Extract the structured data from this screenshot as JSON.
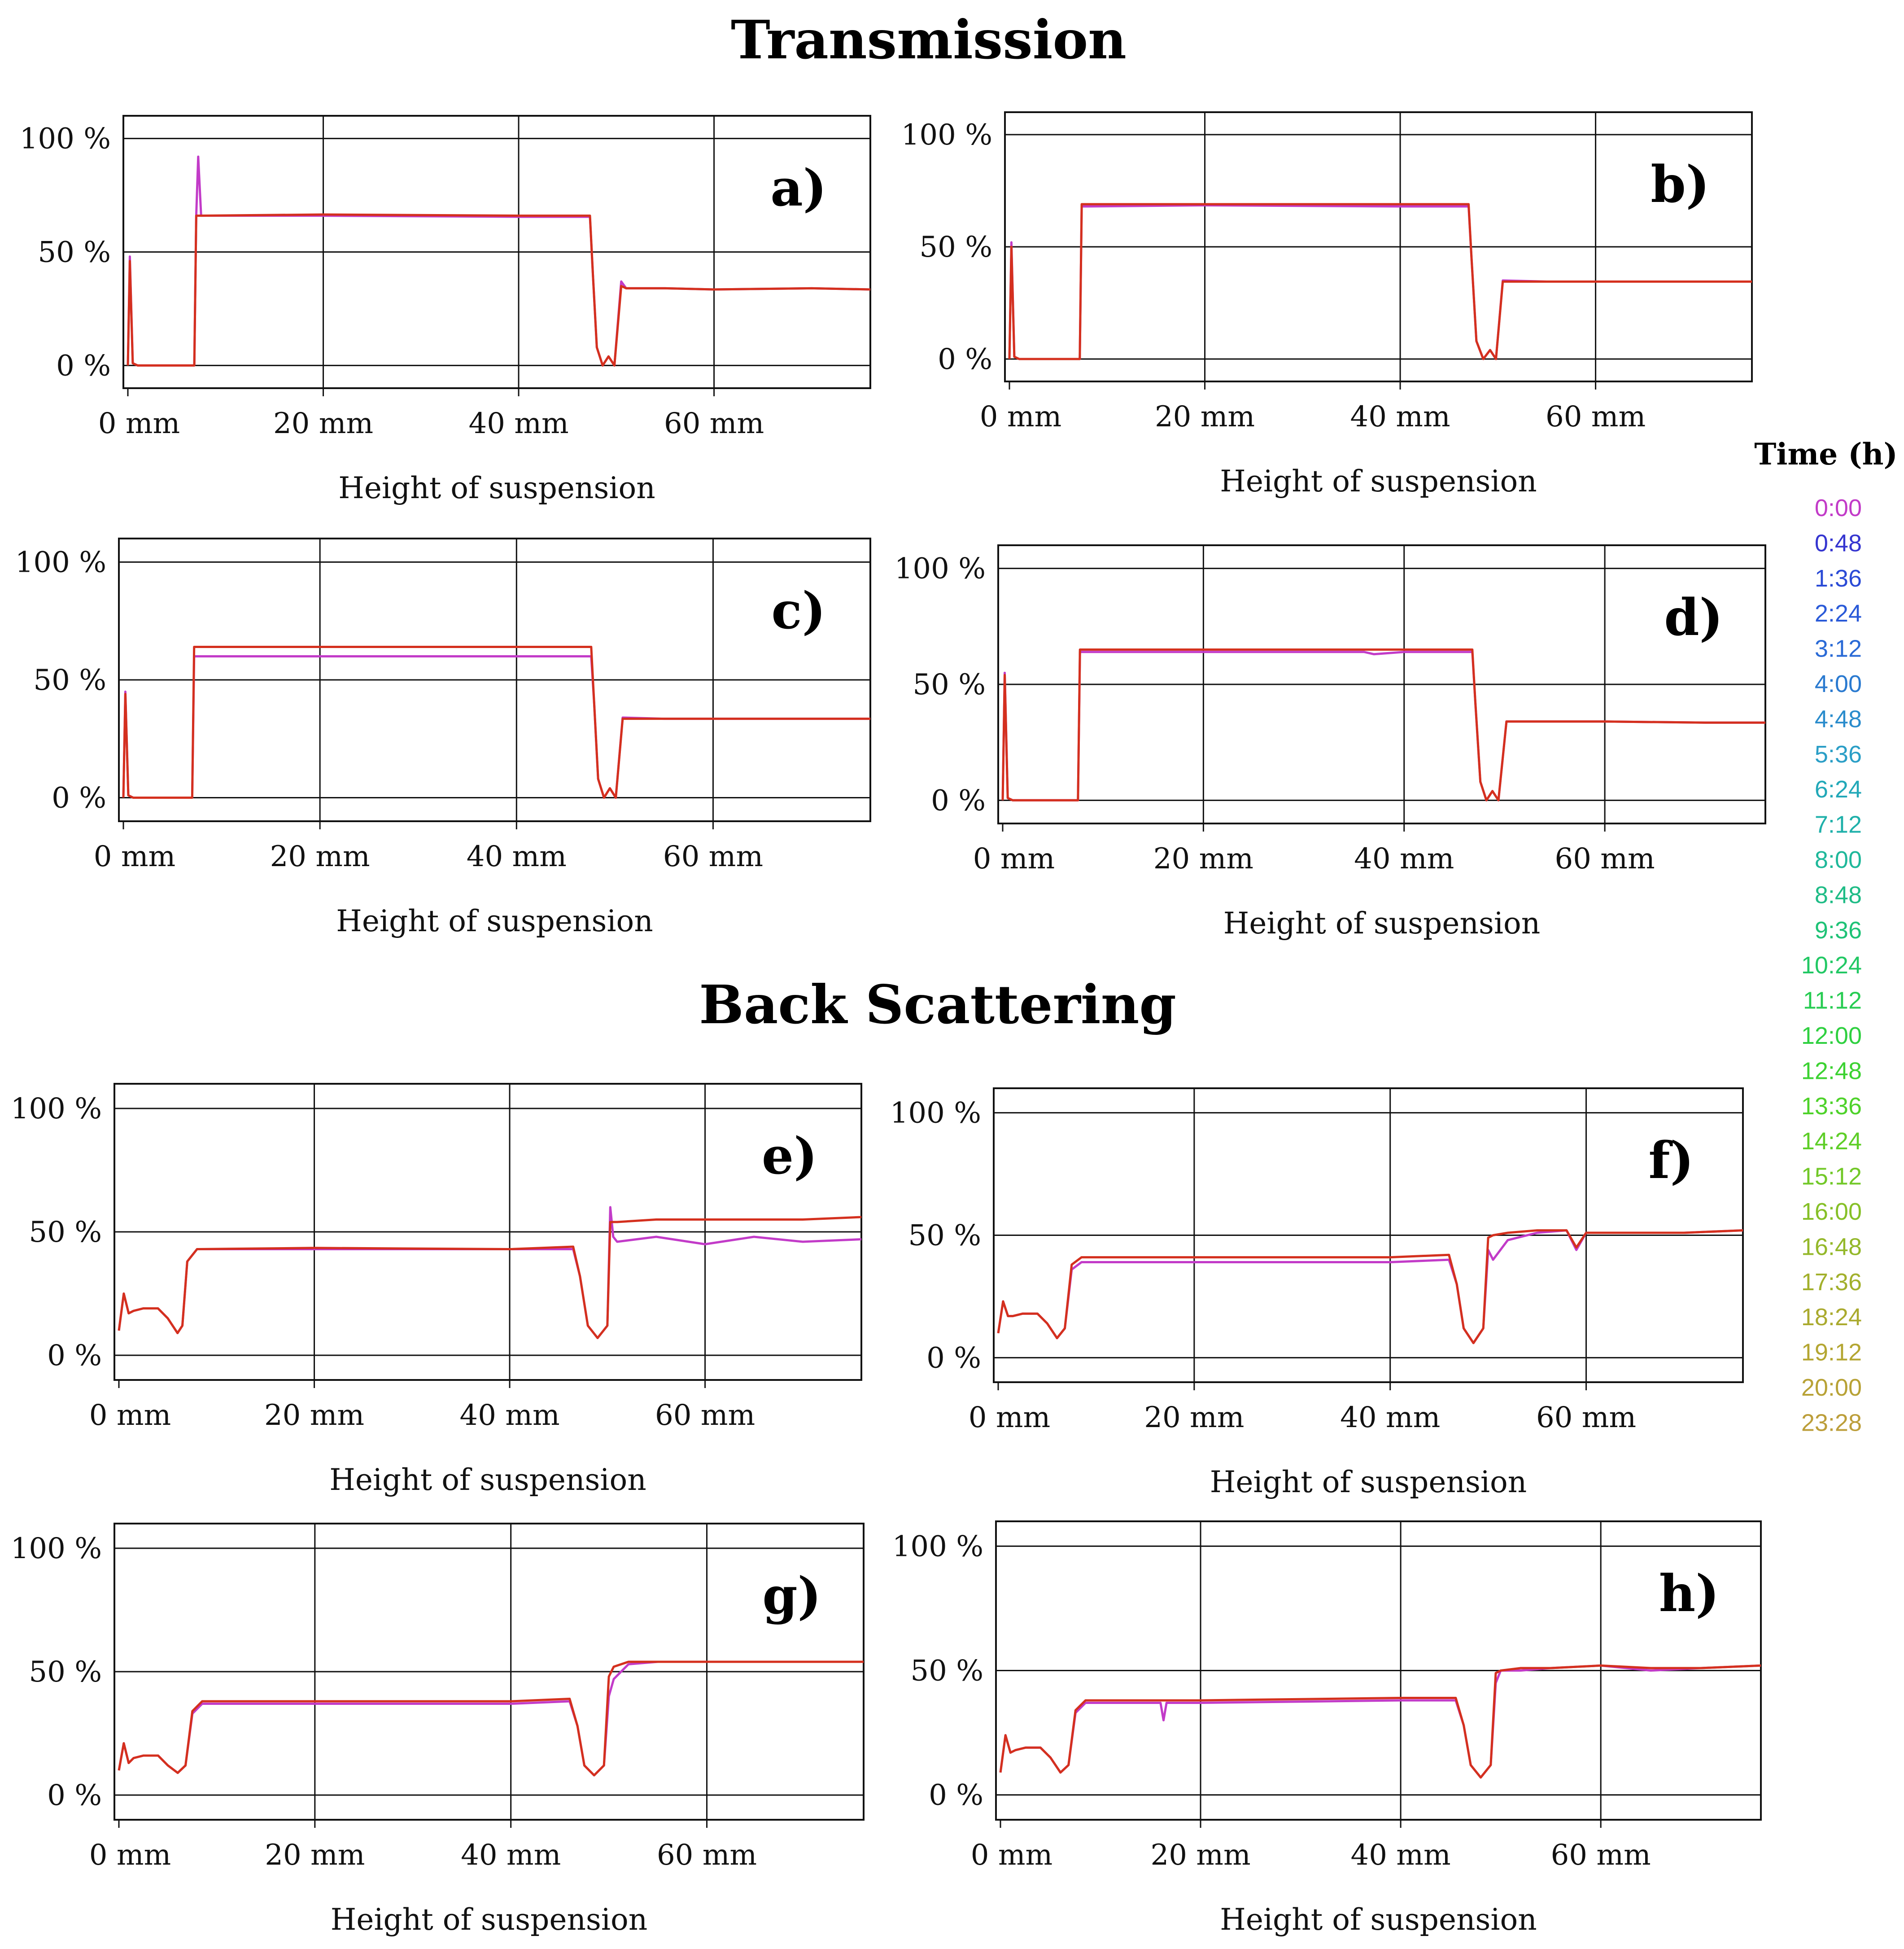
{
  "sections": {
    "transmission_title": "Transmission",
    "back_scattering_title": "Back Scattering"
  },
  "legend": {
    "title": "Time (h)",
    "items": [
      {
        "label": "0:00",
        "color": "#c23bc8"
      },
      {
        "label": "0:48",
        "color": "#3535d0"
      },
      {
        "label": "1:36",
        "color": "#2b4bd6"
      },
      {
        "label": "2:24",
        "color": "#2a5ad8"
      },
      {
        "label": "3:12",
        "color": "#2a6ad6"
      },
      {
        "label": "4:00",
        "color": "#2a7ad0"
      },
      {
        "label": "4:48",
        "color": "#2a8ccc"
      },
      {
        "label": "5:36",
        "color": "#2a9ec6"
      },
      {
        "label": "6:24",
        "color": "#22a8b8"
      },
      {
        "label": "7:12",
        "color": "#1fb0aa"
      },
      {
        "label": "8:00",
        "color": "#1fb89a"
      },
      {
        "label": "8:48",
        "color": "#1fbc86"
      },
      {
        "label": "9:36",
        "color": "#1ec276"
      },
      {
        "label": "10:24",
        "color": "#22c864"
      },
      {
        "label": "11:12",
        "color": "#27cc52"
      },
      {
        "label": "12:00",
        "color": "#2fd040"
      },
      {
        "label": "12:48",
        "color": "#3cd232"
      },
      {
        "label": "13:36",
        "color": "#4ed22a"
      },
      {
        "label": "14:24",
        "color": "#5ece28"
      },
      {
        "label": "15:12",
        "color": "#72c828"
      },
      {
        "label": "16:00",
        "color": "#86c028"
      },
      {
        "label": "16:48",
        "color": "#94b82a"
      },
      {
        "label": "17:36",
        "color": "#a2b02c"
      },
      {
        "label": "18:24",
        "color": "#aaaa2e"
      },
      {
        "label": "19:12",
        "color": "#b4a632"
      },
      {
        "label": "20:00",
        "color": "#b8a236"
      },
      {
        "label": "23:28",
        "color": "#bc9e3a"
      }
    ]
  },
  "chart_data": [
    {
      "panel": "a)",
      "group": "Transmission",
      "type": "line",
      "xlabel": "Height of suspension",
      "xticks": [
        "0 mm",
        "20 mm",
        "40 mm",
        "60 mm"
      ],
      "yticks": [
        "100 %",
        "50 %",
        "0 %"
      ],
      "xlim": [
        0,
        76
      ],
      "ylim": [
        -10,
        110
      ],
      "series": [
        {
          "name": "0:00",
          "x": [
            0,
            0.2,
            0.5,
            1,
            6.8,
            7.0,
            7.2,
            7.5,
            20,
            40,
            47.3,
            47.6,
            48,
            48.6,
            49.2,
            49.8,
            50.5,
            51,
            55,
            60,
            70,
            76
          ],
          "y": [
            0,
            48,
            1,
            0,
            0,
            66,
            92,
            66,
            66,
            65.5,
            65.5,
            40,
            8,
            0,
            4,
            0,
            37,
            34,
            34,
            33.5,
            34,
            33.5
          ]
        },
        {
          "name": "23:28",
          "x": [
            0,
            0.2,
            0.5,
            1,
            6.8,
            7.0,
            7.5,
            20,
            40,
            47.3,
            47.6,
            48,
            48.6,
            49.2,
            49.8,
            50.5,
            51,
            55,
            60,
            70,
            76
          ],
          "y": [
            0,
            46,
            1,
            0,
            0,
            66,
            66,
            66.5,
            66,
            66,
            40,
            8,
            0,
            4,
            0,
            35,
            34,
            34,
            33.5,
            34,
            33.5
          ]
        }
      ]
    },
    {
      "panel": "b)",
      "group": "Transmission",
      "type": "line",
      "xlabel": "Height of suspension",
      "xticks": [
        "0 mm",
        "20 mm",
        "40 mm",
        "60 mm"
      ],
      "yticks": [
        "100 %",
        "50 %",
        "0 %"
      ],
      "xlim": [
        0,
        76
      ],
      "ylim": [
        -10,
        110
      ],
      "series": [
        {
          "name": "0:00",
          "x": [
            0,
            0.2,
            0.5,
            1,
            7.2,
            7.4,
            8,
            20,
            40,
            47.0,
            47.3,
            47.8,
            48.5,
            49.2,
            49.8,
            50.5,
            55,
            60,
            70,
            76
          ],
          "y": [
            0,
            52,
            1,
            0,
            0,
            68,
            68,
            68.5,
            68,
            68,
            45,
            8,
            0,
            4,
            0,
            35,
            34.5,
            34.5,
            34.5,
            34.5
          ]
        },
        {
          "name": "23:28",
          "x": [
            0,
            0.2,
            0.5,
            1,
            7.2,
            7.4,
            8,
            20,
            40,
            47.0,
            47.3,
            47.8,
            48.5,
            49.2,
            49.8,
            50.5,
            55,
            60,
            70,
            76
          ],
          "y": [
            0,
            50,
            1,
            0,
            0,
            69,
            69,
            69,
            69,
            69,
            45,
            8,
            0,
            4,
            0,
            34.5,
            34.5,
            34.5,
            34.5,
            34.5
          ]
        }
      ]
    },
    {
      "panel": "c)",
      "group": "Transmission",
      "type": "line",
      "xlabel": "Height of suspension",
      "xticks": [
        "0 mm",
        "20 mm",
        "40 mm",
        "60 mm"
      ],
      "yticks": [
        "100 %",
        "50 %",
        "0 %"
      ],
      "xlim": [
        0,
        76
      ],
      "ylim": [
        -10,
        110
      ],
      "series": [
        {
          "name": "0:00",
          "x": [
            0,
            0.2,
            0.5,
            1,
            7.0,
            7.2,
            8,
            20,
            40,
            47.6,
            47.9,
            48.3,
            48.9,
            49.5,
            50.1,
            50.8,
            55,
            60,
            70,
            76
          ],
          "y": [
            0,
            45,
            1,
            0,
            0,
            60,
            60,
            60,
            60,
            60,
            40,
            8,
            0,
            4,
            0,
            34,
            33.5,
            33.5,
            33.5,
            33.5
          ]
        },
        {
          "name": "23:28",
          "x": [
            0,
            0.2,
            0.5,
            1,
            7.0,
            7.2,
            8,
            20,
            40,
            47.6,
            47.9,
            48.3,
            48.9,
            49.5,
            50.1,
            50.8,
            55,
            60,
            70,
            76
          ],
          "y": [
            0,
            44,
            1,
            0,
            0,
            64,
            64,
            64,
            64,
            64,
            40,
            8,
            0,
            4,
            0,
            33.5,
            33.5,
            33.5,
            33.5,
            33.5
          ]
        }
      ]
    },
    {
      "panel": "d)",
      "group": "Transmission",
      "type": "line",
      "xlabel": "Height of suspension",
      "xticks": [
        "0 mm",
        "20 mm",
        "40 mm",
        "60 mm"
      ],
      "yticks": [
        "100 %",
        "50 %",
        "0 %"
      ],
      "xlim": [
        0,
        76
      ],
      "ylim": [
        -10,
        110
      ],
      "series": [
        {
          "name": "0:00",
          "x": [
            0,
            0.2,
            0.5,
            1,
            7.5,
            7.7,
            8.5,
            20,
            36,
            37,
            40,
            46.8,
            47.1,
            47.6,
            48.2,
            48.8,
            49.4,
            50.2,
            55,
            60,
            70,
            76
          ],
          "y": [
            0,
            55,
            1,
            0,
            0,
            64,
            64,
            64,
            64,
            63,
            64,
            64,
            42,
            8,
            0,
            4,
            0,
            34,
            34,
            34,
            33.5,
            33.5
          ]
        },
        {
          "name": "23:28",
          "x": [
            0,
            0.2,
            0.5,
            1,
            7.5,
            7.7,
            8.5,
            20,
            36,
            40,
            46.8,
            47.1,
            47.6,
            48.2,
            48.8,
            49.4,
            50.2,
            55,
            60,
            70,
            76
          ],
          "y": [
            0,
            54,
            1,
            0,
            0,
            65,
            65,
            65,
            65,
            65,
            65,
            42,
            8,
            0,
            4,
            0,
            34,
            34,
            34,
            33.5,
            33.5
          ]
        }
      ]
    },
    {
      "panel": "e)",
      "group": "Back Scattering",
      "type": "line",
      "xlabel": "Height of suspension",
      "xticks": [
        "0 mm",
        "20 mm",
        "40 mm",
        "60 mm"
      ],
      "yticks": [
        "100 %",
        "50 %",
        "0 %"
      ],
      "xlim": [
        0,
        76
      ],
      "ylim": [
        -10,
        110
      ],
      "series": [
        {
          "name": "0:00",
          "x": [
            0,
            0.5,
            1,
            1.5,
            2.5,
            4,
            5,
            6,
            6.5,
            7,
            8,
            20,
            40,
            46.5,
            47.2,
            48,
            49,
            50,
            50.3,
            50.6,
            51,
            55,
            60,
            65,
            70,
            76
          ],
          "y": [
            10,
            25,
            17,
            18,
            19,
            19,
            15,
            9,
            12,
            38,
            43,
            43,
            43,
            43,
            32,
            12,
            7,
            12,
            60,
            48,
            46,
            48,
            45,
            48,
            46,
            47
          ]
        },
        {
          "name": "23:28",
          "x": [
            0,
            0.5,
            1,
            1.5,
            2.5,
            4,
            5,
            6,
            6.5,
            7,
            8,
            20,
            40,
            46.5,
            47.2,
            48,
            49,
            50,
            50.3,
            51,
            55,
            60,
            65,
            70,
            76
          ],
          "y": [
            10,
            25,
            17,
            18,
            19,
            19,
            15,
            9,
            12,
            38,
            43,
            43.5,
            43,
            44,
            32,
            12,
            7,
            12,
            54,
            54,
            55,
            55,
            55,
            55,
            56
          ]
        }
      ]
    },
    {
      "panel": "f)",
      "group": "Back Scattering",
      "type": "line",
      "xlabel": "Height of suspension",
      "xticks": [
        "0 mm",
        "20 mm",
        "40 mm",
        "60 mm"
      ],
      "yticks": [
        "100 %",
        "50 %",
        "0 %"
      ],
      "xlim": [
        0,
        76
      ],
      "ylim": [
        -10,
        110
      ],
      "series": [
        {
          "name": "0:00",
          "x": [
            0,
            0.5,
            1,
            1.5,
            2.5,
            4,
            5,
            6,
            6.8,
            7.5,
            8.5,
            20,
            40,
            46,
            46.8,
            47.5,
            48.5,
            49.5,
            50,
            50.5,
            52,
            55,
            58,
            59,
            60,
            70,
            76
          ],
          "y": [
            10,
            23,
            17,
            17,
            18,
            18,
            14,
            8,
            12,
            36,
            39,
            39,
            39,
            40,
            30,
            12,
            6,
            12,
            44,
            40,
            48,
            51,
            52,
            44,
            51,
            51,
            52
          ]
        },
        {
          "name": "23:28",
          "x": [
            0,
            0.5,
            1,
            1.5,
            2.5,
            4,
            5,
            6,
            6.8,
            7.5,
            8.5,
            20,
            40,
            46,
            46.8,
            47.5,
            48.5,
            49.5,
            50,
            50.5,
            52,
            55,
            58,
            59,
            60,
            70,
            76
          ],
          "y": [
            10,
            23,
            17,
            17,
            18,
            18,
            14,
            8,
            12,
            38,
            41,
            41,
            41,
            42,
            30,
            12,
            6,
            12,
            49,
            50,
            51,
            52,
            52,
            45,
            51,
            51,
            52
          ]
        }
      ]
    },
    {
      "panel": "g)",
      "group": "Back Scattering",
      "type": "line",
      "xlabel": "Height of suspension",
      "xticks": [
        "0 mm",
        "20 mm",
        "40 mm",
        "60 mm"
      ],
      "yticks": [
        "100 %",
        "50 %",
        "0 %"
      ],
      "xlim": [
        0,
        76
      ],
      "ylim": [
        -10,
        110
      ],
      "series": [
        {
          "name": "0:00",
          "x": [
            0,
            0.5,
            1,
            1.5,
            2.5,
            4,
            5,
            6,
            6.8,
            7.5,
            8.5,
            20,
            40,
            46,
            46.8,
            47.5,
            48.5,
            49.5,
            50,
            50.5,
            52,
            55,
            60,
            70,
            76
          ],
          "y": [
            10,
            21,
            13,
            15,
            16,
            16,
            12,
            9,
            12,
            33,
            37,
            37,
            37,
            38,
            28,
            12,
            8,
            12,
            40,
            47,
            53,
            54,
            54,
            54,
            54
          ]
        },
        {
          "name": "23:28",
          "x": [
            0,
            0.5,
            1,
            1.5,
            2.5,
            4,
            5,
            6,
            6.8,
            7.5,
            8.5,
            20,
            40,
            46,
            46.8,
            47.5,
            48.5,
            49.5,
            50,
            50.5,
            52,
            55,
            60,
            70,
            76
          ],
          "y": [
            10,
            21,
            13,
            15,
            16,
            16,
            12,
            9,
            12,
            34,
            38,
            38,
            38,
            39,
            28,
            12,
            8,
            12,
            48,
            52,
            54,
            54,
            54,
            54,
            54
          ]
        }
      ]
    },
    {
      "panel": "h)",
      "group": "Back Scattering",
      "type": "line",
      "xlabel": "Height of suspension",
      "xticks": [
        "0 mm",
        "20 mm",
        "40 mm",
        "60 mm"
      ],
      "yticks": [
        "100 %",
        "50 %",
        "0 %"
      ],
      "xlim": [
        0,
        76
      ],
      "ylim": [
        -10,
        110
      ],
      "series": [
        {
          "name": "0:00",
          "x": [
            0,
            0.5,
            1,
            1.5,
            2.5,
            4,
            5,
            6,
            6.8,
            7.5,
            8.5,
            16,
            16.3,
            16.6,
            20,
            40,
            45.5,
            46.3,
            47,
            48,
            49,
            49.5,
            50,
            52,
            55,
            60,
            65,
            70,
            76
          ],
          "y": [
            9,
            24,
            17,
            18,
            19,
            19,
            15,
            9,
            12,
            33,
            37,
            37,
            30,
            37,
            37,
            38,
            38,
            28,
            12,
            7,
            12,
            45,
            50,
            50,
            51,
            52,
            50,
            51,
            52
          ]
        },
        {
          "name": "23:28",
          "x": [
            0,
            0.5,
            1,
            1.5,
            2.5,
            4,
            5,
            6,
            6.8,
            7.5,
            8.5,
            20,
            40,
            45.5,
            46.3,
            47,
            48,
            49,
            49.5,
            50,
            52,
            55,
            60,
            65,
            70,
            76
          ],
          "y": [
            9,
            24,
            17,
            18,
            19,
            19,
            15,
            9,
            12,
            34,
            38,
            38,
            39,
            39,
            28,
            12,
            7,
            12,
            49,
            50,
            51,
            51,
            52,
            51,
            51,
            52
          ]
        }
      ]
    }
  ]
}
